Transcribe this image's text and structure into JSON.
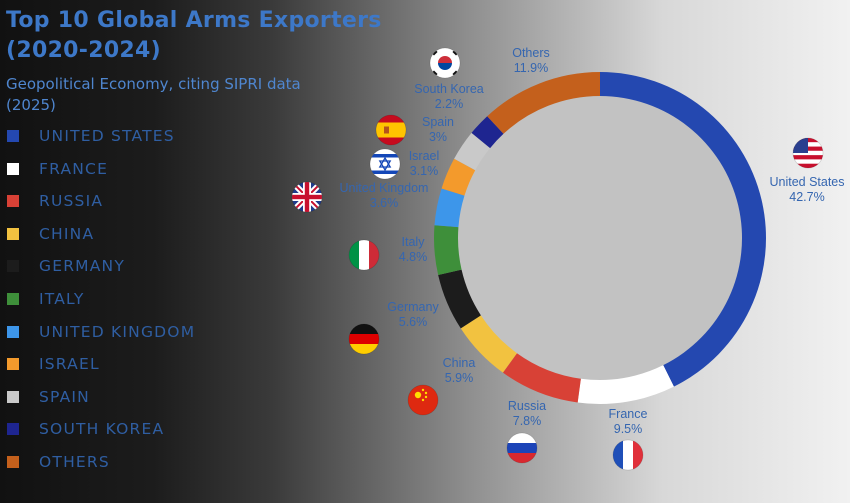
{
  "title_line1": "Top 10 Global Arms Exporters",
  "title_line2": "(2020-2024)",
  "subtitle_line1": "Geopolitical Economy, citing SIPRI data",
  "subtitle_line2": "(2025)",
  "legend": [
    {
      "label": "UNITED STATES",
      "color": "#2448b0"
    },
    {
      "label": "FRANCE",
      "color": "#ffffff"
    },
    {
      "label": "RUSSIA",
      "color": "#d84136"
    },
    {
      "label": "CHINA",
      "color": "#f2c240"
    },
    {
      "label": "GERMANY",
      "color": "#1c1c1c"
    },
    {
      "label": "ITALY",
      "color": "#3e8f3a"
    },
    {
      "label": "UNITED KINGDOM",
      "color": "#3d96ea"
    },
    {
      "label": "ISRAEL",
      "color": "#f39a2c"
    },
    {
      "label": "SPAIN",
      "color": "#c9c9c9"
    },
    {
      "label": "SOUTH KOREA",
      "color": "#1e2590"
    },
    {
      "label": "OTHERS",
      "color": "#c4601c"
    }
  ],
  "chart_data": {
    "type": "pie",
    "style": "donut",
    "title": "Top 10 Global Arms Exporters (2020-2024)",
    "subtitle": "Geopolitical Economy, citing SIPRI data (2025)",
    "legend_position": "left",
    "categories": [
      "United States",
      "France",
      "Russia",
      "China",
      "Germany",
      "Italy",
      "United Kingdom",
      "Israel",
      "Spain",
      "South Korea",
      "Others"
    ],
    "values": [
      42.7,
      9.5,
      7.8,
      5.9,
      5.6,
      4.8,
      3.6,
      3.1,
      3.0,
      2.2,
      11.9
    ],
    "value_labels": [
      "42.7%",
      "9.5%",
      "7.8%",
      "5.9%",
      "5.6%",
      "4.8%",
      "3.6%",
      "3.1%",
      "3%",
      "2.2%",
      "11.9%"
    ],
    "colors": [
      "#2448b0",
      "#ffffff",
      "#d84136",
      "#f2c240",
      "#1c1c1c",
      "#3e8f3a",
      "#3d96ea",
      "#f39a2c",
      "#c9c9c9",
      "#1e2590",
      "#c4601c"
    ],
    "flag_icons": [
      "us-flag-icon",
      "france-flag-icon",
      "russia-flag-icon",
      "china-flag-icon",
      "germany-flag-icon",
      "italy-flag-icon",
      "uk-flag-icon",
      "israel-flag-icon",
      "spain-flag-icon",
      "south-korea-flag-icon",
      ""
    ]
  }
}
